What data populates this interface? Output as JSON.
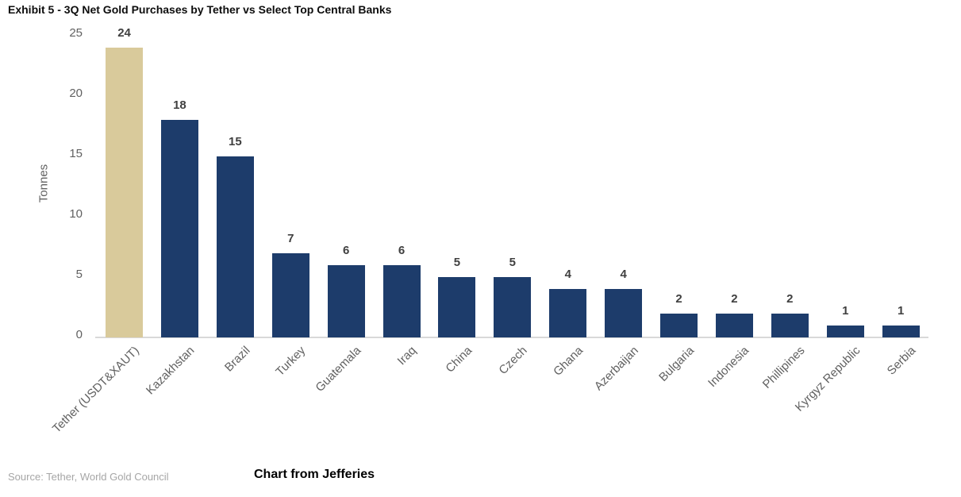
{
  "footer": {
    "source": "Source: Tether, World Gold Council",
    "credit": "Chart from Jefferies"
  },
  "chart_data": {
    "type": "bar",
    "title": "Exhibit 5 - 3Q Net Gold Purchases by Tether vs Select Top Central Banks",
    "xlabel": "",
    "ylabel": "Tonnes",
    "categories": [
      "Tether (USDT&XAUT)",
      "Kazakhstan",
      "Brazil",
      "Turkey",
      "Guatemala",
      "Iraq",
      "China",
      "Czech",
      "Ghana",
      "Azerbaijan",
      "Bulgaria",
      "Indonesia",
      "Phillipines",
      "Kyrgyz Republic",
      "Serbia"
    ],
    "values": [
      24,
      18,
      15,
      7,
      6,
      6,
      5,
      5,
      4,
      4,
      2,
      2,
      2,
      1,
      1
    ],
    "ylim": [
      0,
      25
    ],
    "yticks": [
      0,
      5,
      10,
      15,
      20,
      25
    ],
    "grid": false,
    "legend": "none",
    "value_labels_shown": true,
    "xtick_rotation_deg": 45,
    "colors": {
      "highlight_bar": "#d9ca9b",
      "default_bar": "#1d3c6b",
      "highlight_index": 0,
      "axis_text": "#616161",
      "value_label_text": "#404040",
      "axis_line": "#d9d9d9",
      "source_text": "#a6a6a6"
    }
  }
}
